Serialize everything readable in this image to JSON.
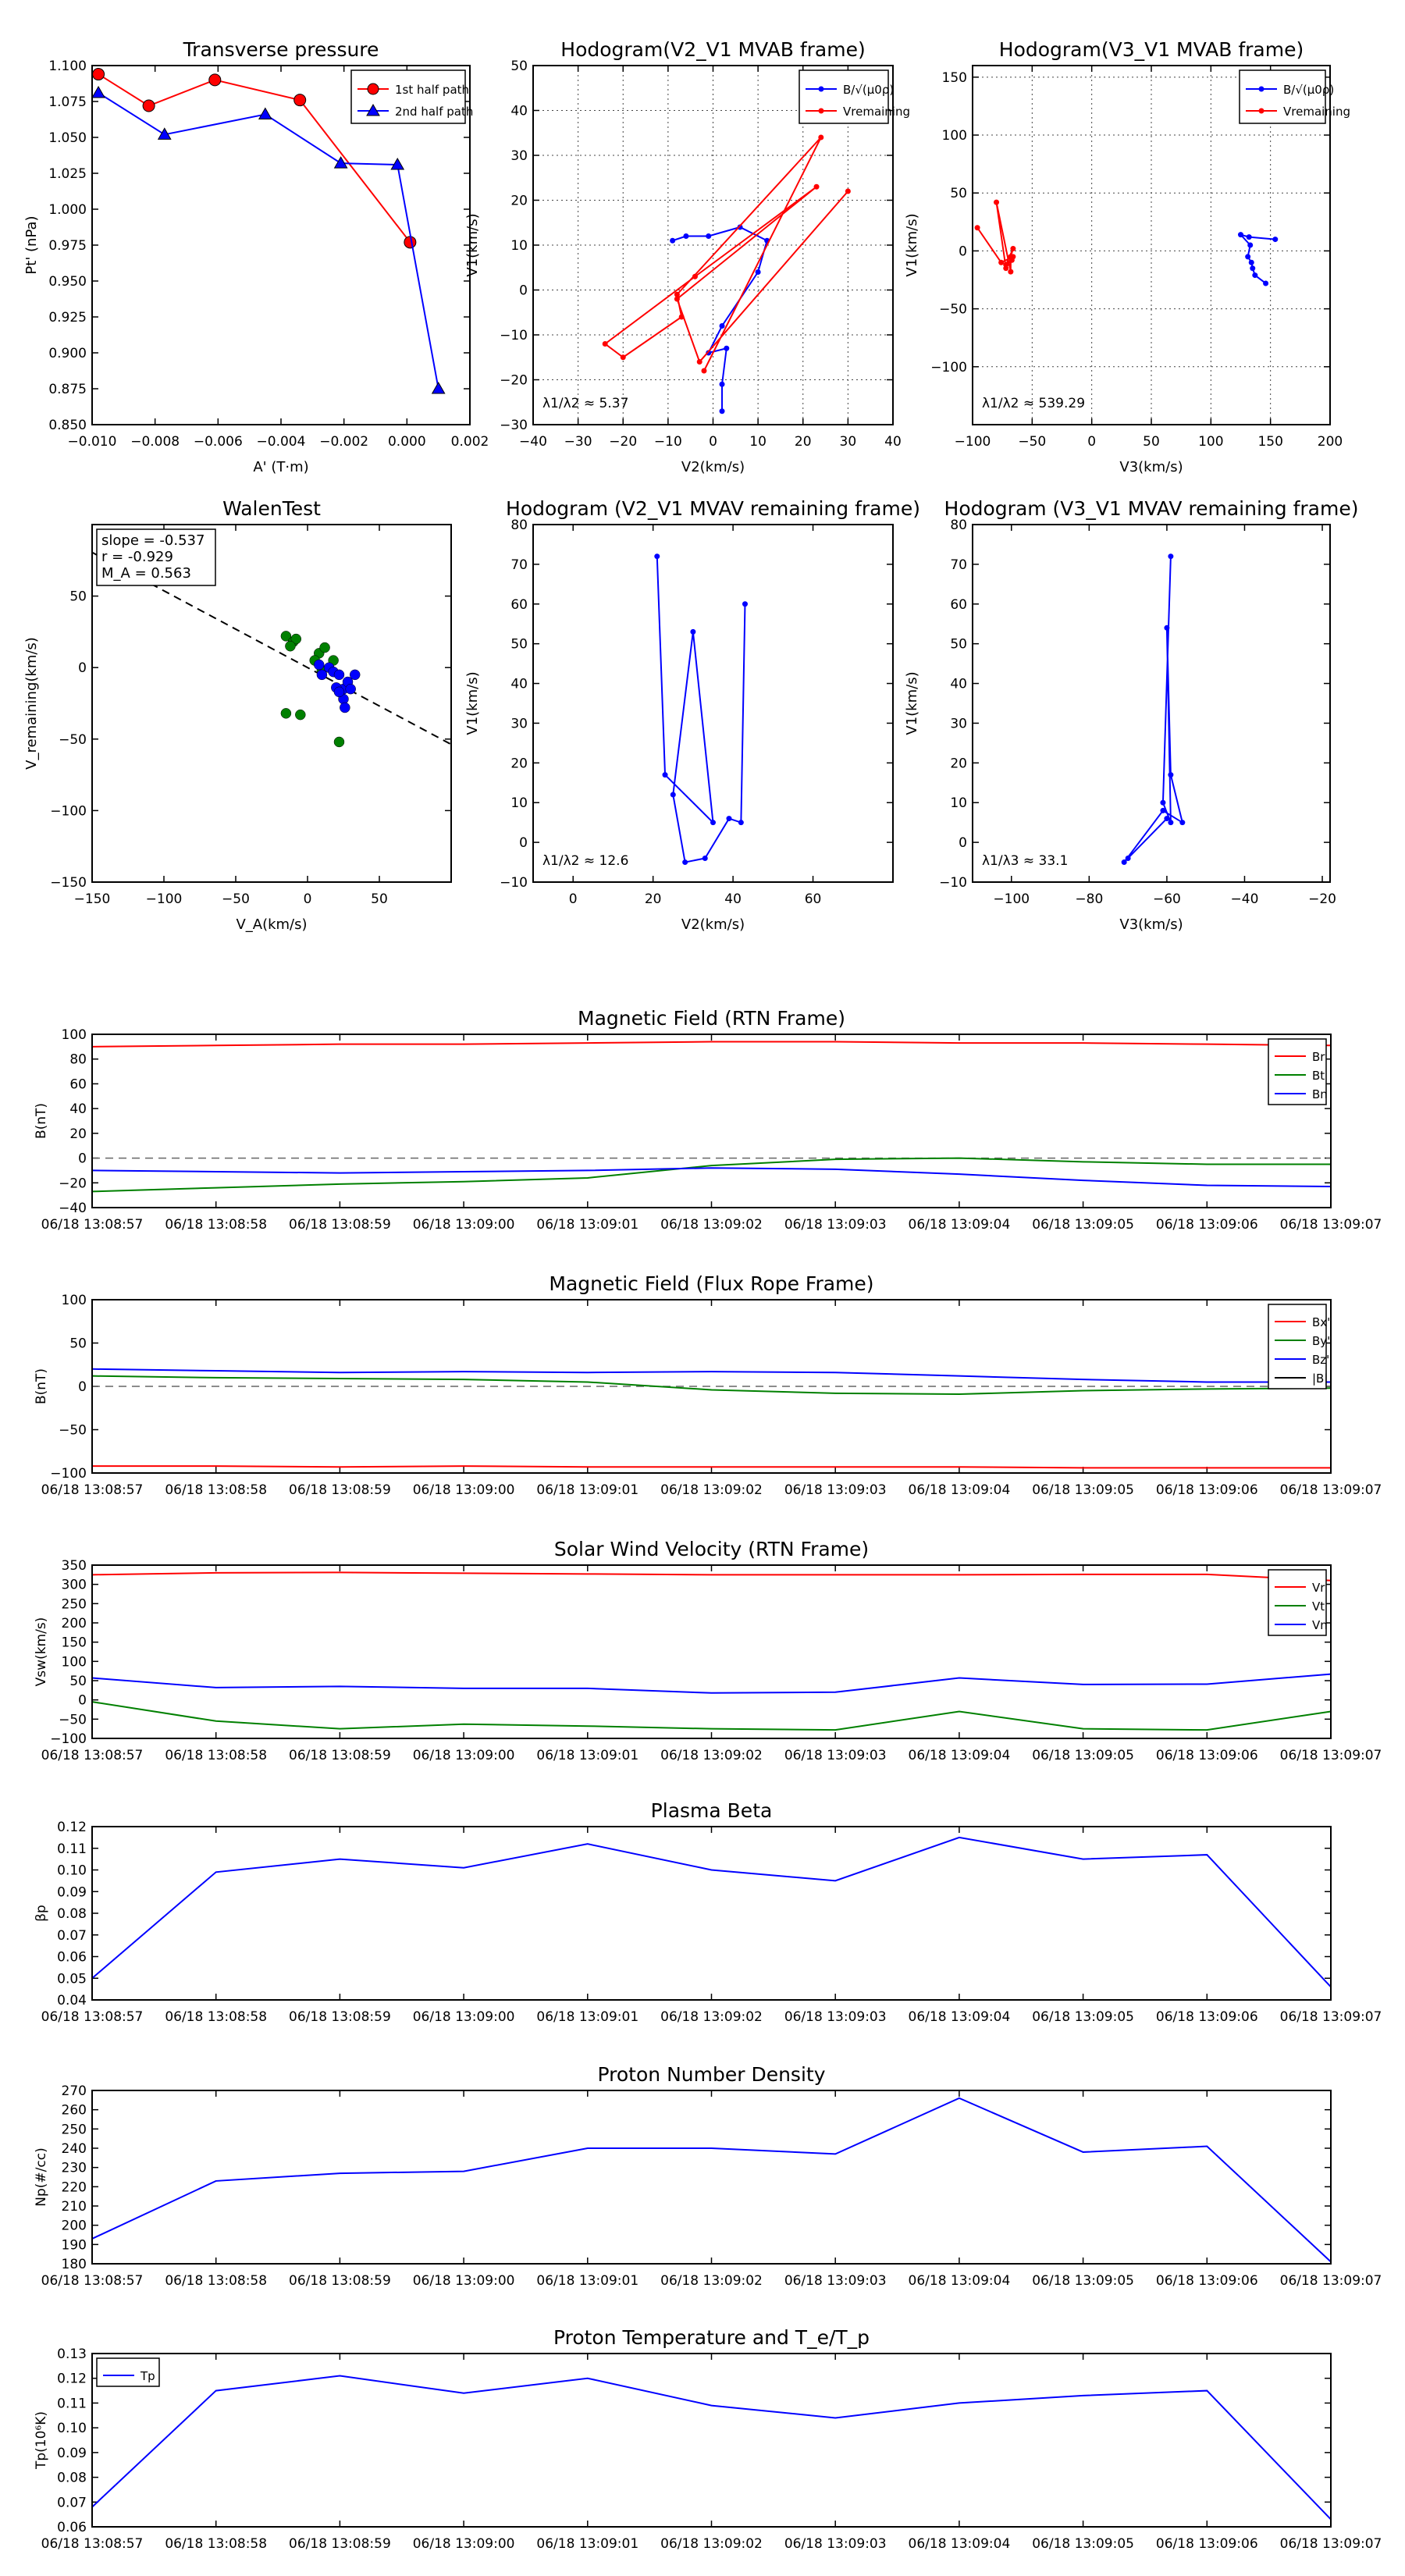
{
  "chart_data": [
    {
      "id": "tp",
      "type": "line",
      "title": "Transverse pressure",
      "xlabel": "A' (T·m)",
      "ylabel": "Pt' (nPa)",
      "xlim": [
        -0.01,
        0.002
      ],
      "ylim": [
        0.85,
        1.1
      ],
      "xticks": [
        -0.01,
        -0.008,
        -0.006,
        -0.004,
        -0.002,
        0,
        0.002
      ],
      "xticklabels": [
        "−0.010",
        "−0.008",
        "−0.006",
        "−0.004",
        "−0.002",
        "0.000",
        "0.002"
      ],
      "yticks": [
        0.85,
        0.875,
        0.9,
        0.925,
        0.95,
        0.975,
        1.0,
        1.025,
        1.05,
        1.075,
        1.1
      ],
      "yticklabels": [
        "0.850",
        "0.875",
        "0.900",
        "0.925",
        "0.950",
        "0.975",
        "1.000",
        "1.025",
        "1.050",
        "1.075",
        "1.100"
      ],
      "grid": false,
      "legend_position": "upper right",
      "series": [
        {
          "name": "1st half path",
          "color": "#ff0000",
          "marker": "circle",
          "x": [
            -0.0098,
            -0.0082,
            -0.0061,
            -0.0034,
            0.0001
          ],
          "y": [
            1.094,
            1.072,
            1.09,
            1.076,
            0.977
          ]
        },
        {
          "name": "2nd half path",
          "color": "#0000ff",
          "marker": "triangle",
          "x": [
            -0.0098,
            -0.0077,
            -0.0045,
            -0.0021,
            -0.0003,
            0.001
          ],
          "y": [
            1.081,
            1.052,
            1.066,
            1.032,
            1.031,
            0.875
          ]
        }
      ]
    },
    {
      "id": "h1",
      "type": "line",
      "title": "Hodogram(V2_V1 MVAB frame)",
      "xlabel": "V2(km/s)",
      "ylabel": "V1(km/s)",
      "xlim": [
        -40,
        40
      ],
      "ylim": [
        -30,
        50
      ],
      "xticks": [
        -40,
        -30,
        -20,
        -10,
        0,
        10,
        20,
        30,
        40
      ],
      "xticklabels": [
        "−40",
        "−30",
        "−20",
        "−10",
        "0",
        "10",
        "20",
        "30",
        "40"
      ],
      "yticks": [
        -30,
        -20,
        -10,
        0,
        10,
        20,
        30,
        40,
        50
      ],
      "yticklabels": [
        "−30",
        "−20",
        "−10",
        "0",
        "10",
        "20",
        "30",
        "40",
        "50"
      ],
      "grid": true,
      "legend_position": "upper right",
      "annotation": "λ1/λ2 ≈ 5.37",
      "series": [
        {
          "name": "B/√(μ0ρ)",
          "color": "#0000ff",
          "marker": "dot",
          "x": [
            -9,
            -6,
            -1,
            6,
            12,
            10,
            2,
            -1,
            3,
            2,
            2
          ],
          "y": [
            11,
            12,
            12,
            14,
            11,
            4,
            -8,
            -14,
            -13,
            -21,
            -27
          ]
        },
        {
          "name": "Vremaining",
          "color": "#ff0000",
          "marker": "dot",
          "x": [
            30,
            -3,
            -8,
            23,
            -4,
            -24,
            -20,
            -7,
            -8,
            24,
            -2
          ],
          "y": [
            22,
            -16,
            -2,
            23,
            3,
            -12,
            -15,
            -6,
            -1,
            34,
            -18
          ]
        }
      ]
    },
    {
      "id": "h2",
      "type": "line",
      "title": "Hodogram(V3_V1 MVAB frame)",
      "xlabel": "V3(km/s)",
      "ylabel": "V1(km/s)",
      "xlim": [
        -100,
        200
      ],
      "ylim": [
        -150,
        160
      ],
      "xticks": [
        -100,
        -50,
        0,
        50,
        100,
        150,
        200
      ],
      "xticklabels": [
        "−100",
        "−50",
        "0",
        "50",
        "100",
        "150",
        "200"
      ],
      "yticks": [
        -100,
        -50,
        0,
        50,
        100,
        150
      ],
      "yticklabels": [
        "−100",
        "−50",
        "0",
        "50",
        "100",
        "150"
      ],
      "grid": true,
      "legend_position": "upper right",
      "annotation": "λ1/λ2 ≈ 539.29",
      "series": [
        {
          "name": "B/√(μ0ρ)",
          "color": "#0000ff",
          "marker": "dot",
          "x": [
            154,
            132,
            125,
            133,
            131,
            134,
            135,
            137,
            146
          ],
          "y": [
            10,
            12,
            14,
            5,
            -5,
            -10,
            -15,
            -21,
            -28
          ]
        },
        {
          "name": "Vremaining",
          "color": "#ff0000",
          "marker": "dot",
          "x": [
            -96,
            -76,
            -66,
            -72,
            -80,
            -68,
            -68,
            -66,
            -72,
            -67
          ],
          "y": [
            20,
            -10,
            -5,
            -15,
            42,
            -18,
            -5,
            2,
            -12,
            -8
          ]
        }
      ]
    },
    {
      "id": "walen",
      "type": "scatter",
      "title": "WalenTest",
      "xlabel": "V_A(km/s)",
      "ylabel": "V_remaining(km/s)",
      "xlim": [
        -150,
        100
      ],
      "ylim": [
        -150,
        100
      ],
      "xticks": [
        -150,
        -100,
        -50,
        0,
        50
      ],
      "xticklabels": [
        "−150",
        "−100",
        "−50",
        "0",
        "50"
      ],
      "yticks": [
        -150,
        -100,
        -50,
        0,
        50
      ],
      "yticklabels": [
        "−150",
        "−100",
        "−50",
        "0",
        "50"
      ],
      "grid": false,
      "fit_slope": -0.537,
      "fit_intercept": 0,
      "annotations": [
        "slope = -0.537",
        "r = -0.929",
        "M_A = 0.563"
      ],
      "series": [
        {
          "name": "green",
          "color": "#008000",
          "x": [
            -15,
            -10,
            -8,
            -12,
            8,
            5,
            12,
            18,
            10,
            -15,
            -5,
            22
          ],
          "y": [
            22,
            18,
            20,
            15,
            10,
            5,
            14,
            5,
            -2,
            -32,
            -33,
            -52
          ]
        },
        {
          "name": "blue",
          "color": "#0000ff",
          "x": [
            8,
            10,
            15,
            18,
            22,
            25,
            28,
            20,
            25,
            30,
            22,
            26,
            33
          ],
          "y": [
            2,
            -5,
            0,
            -3,
            -5,
            -15,
            -10,
            -14,
            -22,
            -15,
            -17,
            -28,
            -5
          ]
        }
      ]
    },
    {
      "id": "h3",
      "type": "line",
      "title": "Hodogram (V2_V1 MVAV remaining frame)",
      "xlabel": "V2(km/s)",
      "ylabel": "V1(km/s)",
      "xlim": [
        -10,
        80
      ],
      "ylim": [
        -10,
        80
      ],
      "xticks": [
        0,
        20,
        40,
        60
      ],
      "xticklabels": [
        "0",
        "20",
        "40",
        "60"
      ],
      "yticks": [
        -10,
        0,
        10,
        20,
        30,
        40,
        50,
        60,
        70,
        80
      ],
      "yticklabels": [
        "−10",
        "0",
        "10",
        "20",
        "30",
        "40",
        "50",
        "60",
        "70",
        "80"
      ],
      "grid": false,
      "annotation": "λ1/λ2 ≈ 12.6",
      "series": [
        {
          "name": "path",
          "color": "#0000ff",
          "marker": "dot",
          "x": [
            21,
            23,
            35,
            30,
            25,
            28,
            33,
            39,
            42,
            43
          ],
          "y": [
            72,
            17,
            5,
            53,
            12,
            -5,
            -4,
            6,
            5,
            60
          ]
        }
      ]
    },
    {
      "id": "h4",
      "type": "line",
      "title": "Hodogram (V3_V1 MVAV remaining frame)",
      "xlabel": "V3(km/s)",
      "ylabel": "V1(km/s)",
      "xlim": [
        -110,
        -18
      ],
      "ylim": [
        -10,
        80
      ],
      "xticks": [
        -100,
        -80,
        -60,
        -40,
        -20
      ],
      "xticklabels": [
        "−100",
        "−80",
        "−60",
        "−40",
        "−20"
      ],
      "yticks": [
        -10,
        0,
        10,
        20,
        30,
        40,
        50,
        60,
        70,
        80
      ],
      "yticklabels": [
        "−10",
        "0",
        "10",
        "20",
        "30",
        "40",
        "50",
        "60",
        "70",
        "80"
      ],
      "grid": false,
      "annotation": "λ1/λ3 ≈ 33.1",
      "series": [
        {
          "name": "path",
          "color": "#0000ff",
          "marker": "dot",
          "x": [
            -59,
            -61,
            -59,
            -60,
            -59,
            -56,
            -61,
            -71,
            -70,
            -60
          ],
          "y": [
            72,
            10,
            5,
            54,
            17,
            5,
            8,
            -5,
            -4,
            6
          ]
        }
      ]
    },
    {
      "id": "mag_rtn",
      "type": "line",
      "title": "Magnetic Field (RTN Frame)",
      "xlabel": "",
      "ylabel": "B(nT)",
      "x": [
        "06/18 13:08:57",
        "06/18 13:08:58",
        "06/18 13:08:59",
        "06/18 13:09:00",
        "06/18 13:09:01",
        "06/18 13:09:02",
        "06/18 13:09:03",
        "06/18 13:09:04",
        "06/18 13:09:05",
        "06/18 13:09:06",
        "06/18 13:09:07"
      ],
      "ylim": [
        -40,
        100
      ],
      "yticks": [
        -40,
        -20,
        0,
        20,
        40,
        60,
        80,
        100
      ],
      "yticklabels": [
        "−40",
        "−20",
        "0",
        "20",
        "40",
        "60",
        "80",
        "100"
      ],
      "legend_position": "upper right",
      "zero_line": true,
      "series": [
        {
          "name": "Br",
          "color": "#ff0000",
          "values": [
            90,
            91,
            92,
            92,
            93,
            94,
            94,
            93,
            93,
            92,
            91
          ]
        },
        {
          "name": "Bt",
          "color": "#008000",
          "values": [
            -27,
            -24,
            -21,
            -19,
            -16,
            -6,
            -1,
            0,
            -3,
            -5,
            -5
          ]
        },
        {
          "name": "Bn",
          "color": "#0000ff",
          "values": [
            -10,
            -11,
            -12,
            -11,
            -10,
            -8,
            -9,
            -13,
            -18,
            -22,
            -23
          ]
        }
      ]
    },
    {
      "id": "mag_fr",
      "type": "line",
      "title": "Magnetic Field (Flux Rope Frame)",
      "xlabel": "",
      "ylabel": "B(nT)",
      "x": [
        "06/18 13:08:57",
        "06/18 13:08:58",
        "06/18 13:08:59",
        "06/18 13:09:00",
        "06/18 13:09:01",
        "06/18 13:09:02",
        "06/18 13:09:03",
        "06/18 13:09:04",
        "06/18 13:09:05",
        "06/18 13:09:06",
        "06/18 13:09:07"
      ],
      "ylim": [
        -100,
        100
      ],
      "yticks": [
        -100,
        -50,
        0,
        50,
        100
      ],
      "yticklabels": [
        "−100",
        "−50",
        "0",
        "50",
        "100"
      ],
      "legend_position": "upper right",
      "zero_line": true,
      "series": [
        {
          "name": "Bx'",
          "color": "#ff0000",
          "values": [
            -92,
            -92,
            -93,
            -92,
            -93,
            -93,
            -93,
            -93,
            -94,
            -94,
            -94
          ]
        },
        {
          "name": "By'",
          "color": "#008000",
          "values": [
            12,
            10,
            9,
            8,
            5,
            -4,
            -8,
            -9,
            -5,
            -3,
            -2
          ]
        },
        {
          "name": "Bz'",
          "color": "#0000ff",
          "values": [
            20,
            18,
            16,
            17,
            16,
            17,
            16,
            12,
            8,
            5,
            5
          ]
        },
        {
          "name": "|B|",
          "color": "#000000",
          "values": [
            null,
            null,
            null,
            null,
            null,
            null,
            null,
            null,
            null,
            null,
            null
          ]
        }
      ]
    },
    {
      "id": "vsw",
      "type": "line",
      "title": "Solar Wind Velocity (RTN Frame)",
      "xlabel": "",
      "ylabel": "Vsw(km/s)",
      "x": [
        "06/18 13:08:57",
        "06/18 13:08:58",
        "06/18 13:08:59",
        "06/18 13:09:00",
        "06/18 13:09:01",
        "06/18 13:09:02",
        "06/18 13:09:03",
        "06/18 13:09:04",
        "06/18 13:09:05",
        "06/18 13:09:06",
        "06/18 13:09:07"
      ],
      "ylim": [
        -100,
        350
      ],
      "yticks": [
        -100,
        -50,
        0,
        50,
        100,
        150,
        200,
        250,
        300,
        350
      ],
      "yticklabels": [
        "−100",
        "−50",
        "0",
        "50",
        "100",
        "150",
        "200",
        "250",
        "300",
        "350"
      ],
      "legend_position": "upper right",
      "series": [
        {
          "name": "Vr",
          "color": "#ff0000",
          "values": [
            325,
            330,
            331,
            329,
            327,
            325,
            325,
            325,
            326,
            326,
            310
          ]
        },
        {
          "name": "Vt",
          "color": "#008000",
          "values": [
            -5,
            -55,
            -75,
            -63,
            -68,
            -75,
            -78,
            -30,
            -75,
            -78,
            -30
          ]
        },
        {
          "name": "Vn",
          "color": "#0000ff",
          "values": [
            57,
            32,
            35,
            30,
            30,
            18,
            20,
            57,
            40,
            41,
            67
          ]
        }
      ]
    },
    {
      "id": "beta",
      "type": "line",
      "title": "Plasma Beta",
      "xlabel": "",
      "ylabel": "βp",
      "x": [
        "06/18 13:08:57",
        "06/18 13:08:58",
        "06/18 13:08:59",
        "06/18 13:09:00",
        "06/18 13:09:01",
        "06/18 13:09:02",
        "06/18 13:09:03",
        "06/18 13:09:04",
        "06/18 13:09:05",
        "06/18 13:09:06",
        "06/18 13:09:07"
      ],
      "ylim": [
        0.04,
        0.12
      ],
      "yticks": [
        0.04,
        0.05,
        0.06,
        0.07,
        0.08,
        0.09,
        0.1,
        0.11,
        0.12
      ],
      "yticklabels": [
        "0.04",
        "0.05",
        "0.06",
        "0.07",
        "0.08",
        "0.09",
        "0.10",
        "0.11",
        "0.12"
      ],
      "series": [
        {
          "name": "beta",
          "color": "#0000ff",
          "values": [
            0.05,
            0.099,
            0.105,
            0.101,
            0.112,
            0.1,
            0.095,
            0.115,
            0.105,
            0.107,
            0.046
          ]
        }
      ]
    },
    {
      "id": "np",
      "type": "line",
      "title": "Proton Number Density",
      "xlabel": "",
      "ylabel": "Np(#/cc)",
      "x": [
        "06/18 13:08:57",
        "06/18 13:08:58",
        "06/18 13:08:59",
        "06/18 13:09:00",
        "06/18 13:09:01",
        "06/18 13:09:02",
        "06/18 13:09:03",
        "06/18 13:09:04",
        "06/18 13:09:05",
        "06/18 13:09:06",
        "06/18 13:09:07"
      ],
      "ylim": [
        180,
        270
      ],
      "yticks": [
        180,
        190,
        200,
        210,
        220,
        230,
        240,
        250,
        260,
        270
      ],
      "yticklabels": [
        "180",
        "190",
        "200",
        "210",
        "220",
        "230",
        "240",
        "250",
        "260",
        "270"
      ],
      "series": [
        {
          "name": "Np",
          "color": "#0000ff",
          "values": [
            193,
            223,
            227,
            228,
            240,
            240,
            237,
            266,
            238,
            241,
            181
          ]
        }
      ]
    },
    {
      "id": "tp_temp",
      "type": "line",
      "title": "Proton Temperature and T_e/T_p",
      "xlabel": "",
      "ylabel": "Tp(10⁶K)",
      "x": [
        "06/18 13:08:57",
        "06/18 13:08:58",
        "06/18 13:08:59",
        "06/18 13:09:00",
        "06/18 13:09:01",
        "06/18 13:09:02",
        "06/18 13:09:03",
        "06/18 13:09:04",
        "06/18 13:09:05",
        "06/18 13:09:06",
        "06/18 13:09:07"
      ],
      "ylim": [
        0.06,
        0.13
      ],
      "yticks": [
        0.06,
        0.07,
        0.08,
        0.09,
        0.1,
        0.11,
        0.12,
        0.13
      ],
      "yticklabels": [
        "0.06",
        "0.07",
        "0.08",
        "0.09",
        "0.10",
        "0.11",
        "0.12",
        "0.13"
      ],
      "legend_position": "upper left",
      "series": [
        {
          "name": "Tp",
          "color": "#0000ff",
          "values": [
            0.068,
            0.115,
            0.121,
            0.114,
            0.12,
            0.109,
            0.104,
            0.11,
            0.113,
            0.115,
            0.063
          ]
        }
      ]
    }
  ]
}
